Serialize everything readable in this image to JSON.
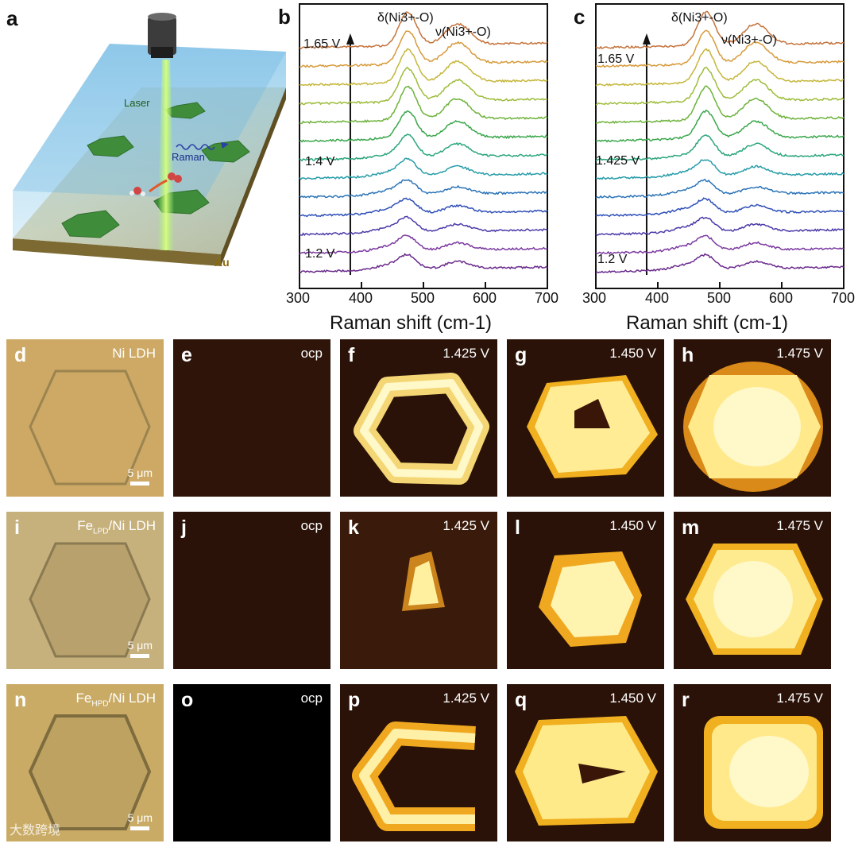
{
  "panel_a": {
    "label": "a",
    "laser": "Laser",
    "raman": "Raman",
    "au": "Au"
  },
  "panel_b": {
    "label": "b",
    "top_voltage": "1.65 V",
    "mid_voltage": "1.4 V",
    "bottom_voltage": "1.2 V",
    "peak1": "δ(Ni3+-O)",
    "peak2": "ν(Ni3+-O)"
  },
  "panel_c": {
    "label": "c",
    "top_voltage": "1.65 V",
    "mid_voltage": "1.425 V",
    "bottom_voltage": "1.2 V",
    "peak1": "δ(Ni3+-O)",
    "peak2": "ν(Ni3+-O)"
  },
  "x_axis_title": "Raman shift (cm-1)",
  "x_ticks": [
    "300",
    "400",
    "500",
    "600",
    "700"
  ],
  "chart_data": [
    {
      "type": "line",
      "title": "b",
      "xlabel": "Raman shift (cm-1)",
      "xlim": [
        300,
        700
      ],
      "curves": 13,
      "potential_range": [
        "1.2 V",
        "1.65 V"
      ],
      "peaks_cm-1": [
        475,
        555
      ],
      "peak_onset_label": "1.4 V"
    },
    {
      "type": "line",
      "title": "c",
      "xlabel": "Raman shift (cm-1)",
      "xlim": [
        300,
        700
      ],
      "curves": 13,
      "potential_range": [
        "1.2 V",
        "1.65 V"
      ],
      "peaks_cm-1": [
        478,
        558
      ],
      "peak_onset_label": "1.425 V"
    }
  ],
  "rows": [
    {
      "optical": {
        "label": "d",
        "title": "Ni LDH",
        "scale": "5 μm"
      },
      "maps": [
        {
          "label": "e",
          "value": "ocp"
        },
        {
          "label": "f",
          "value": "1.425 V"
        },
        {
          "label": "g",
          "value": "1.450 V"
        },
        {
          "label": "h",
          "value": "1.475 V"
        }
      ]
    },
    {
      "optical": {
        "label": "i",
        "title_main": "Fe",
        "title_sub": "LPD",
        "title_rest": "/Ni LDH",
        "scale": "5 μm"
      },
      "maps": [
        {
          "label": "j",
          "value": "ocp"
        },
        {
          "label": "k",
          "value": "1.425 V"
        },
        {
          "label": "l",
          "value": "1.450 V"
        },
        {
          "label": "m",
          "value": "1.475 V"
        }
      ]
    },
    {
      "optical": {
        "label": "n",
        "title_main": "Fe",
        "title_sub": "HPD",
        "title_rest": "/Ni LDH",
        "scale": "5 μm"
      },
      "maps": [
        {
          "label": "o",
          "value": "ocp"
        },
        {
          "label": "p",
          "value": "1.425 V"
        },
        {
          "label": "q",
          "value": "1.450 V"
        },
        {
          "label": "r",
          "value": "1.475 V"
        }
      ]
    }
  ],
  "watermark": "大数跨境",
  "colors": {
    "optical_bg": "#cda965",
    "map_dark": "#2a1208",
    "map_bright": "#fff6a8",
    "map_mid": "#f0b020"
  }
}
